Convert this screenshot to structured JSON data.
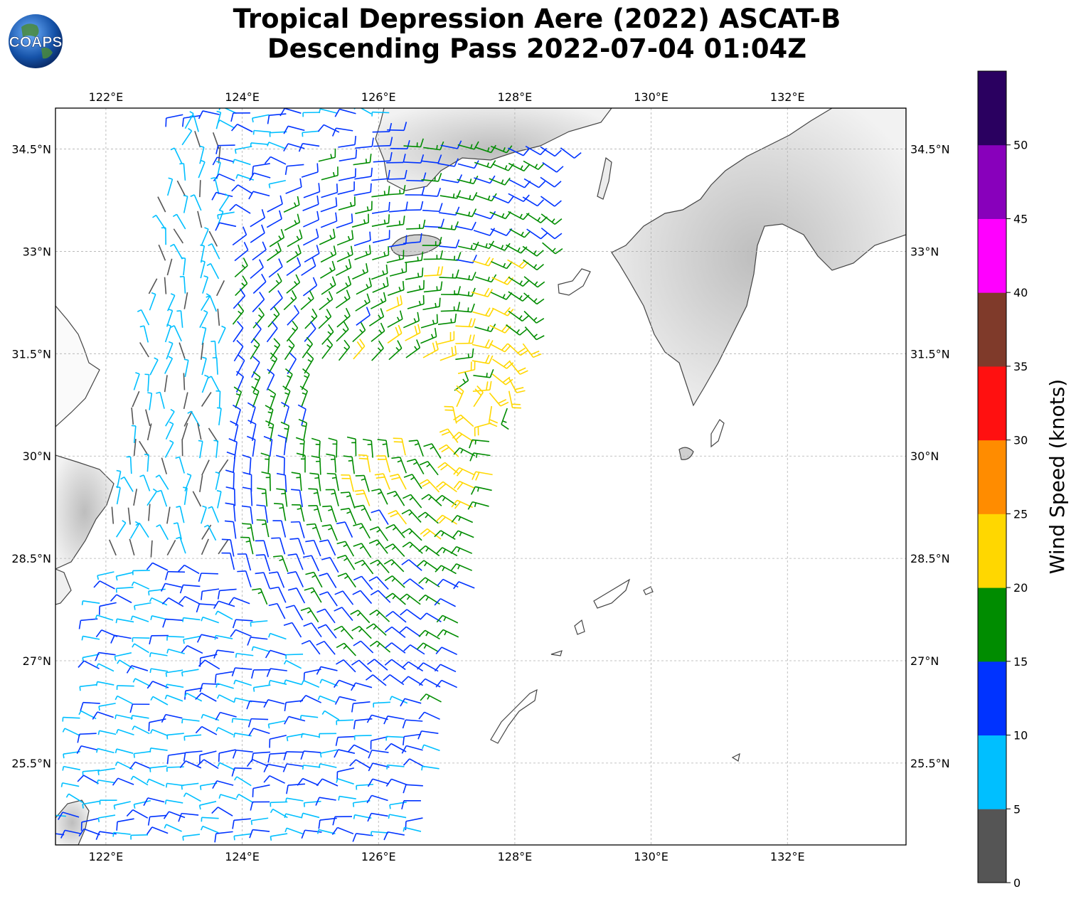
{
  "title": {
    "line1": "Tropical Depression Aere (2022) ASCAT-B",
    "line2": "Descending Pass 2022-07-04 01:04Z"
  },
  "logo": {
    "text": "COAPS",
    "icon": "globe-logo-icon"
  },
  "map": {
    "lon_range": [
      121.26,
      133.74
    ],
    "lat_range": [
      24.3,
      35.1
    ],
    "lon_ticks": [
      "122°E",
      "124°E",
      "126°E",
      "128°E",
      "130°E",
      "132°E"
    ],
    "lon_values": [
      122,
      124,
      126,
      128,
      130,
      132
    ],
    "lat_ticks": [
      "25.5°N",
      "27°N",
      "28.5°N",
      "30°N",
      "31.5°N",
      "33°N",
      "34.5°N"
    ],
    "lat_values": [
      25.5,
      27,
      28.5,
      30,
      31.5,
      33,
      34.5
    ],
    "gridlines": true,
    "storm_center_approx": {
      "lon": 127.5,
      "lat": 30.7
    }
  },
  "colorbar": {
    "label": "Wind Speed (knots)",
    "ticks": [
      "0",
      "5",
      "10",
      "15",
      "20",
      "25",
      "30",
      "35",
      "40",
      "45",
      "50"
    ],
    "bins": [
      {
        "min": 0,
        "max": 5,
        "color": "#555555"
      },
      {
        "min": 5,
        "max": 10,
        "color": "#00bfff"
      },
      {
        "min": 10,
        "max": 15,
        "color": "#0033ff"
      },
      {
        "min": 15,
        "max": 20,
        "color": "#008c00"
      },
      {
        "min": 20,
        "max": 25,
        "color": "#ffd700"
      },
      {
        "min": 25,
        "max": 30,
        "color": "#ff8c00"
      },
      {
        "min": 30,
        "max": 35,
        "color": "#ff1010"
      },
      {
        "min": 35,
        "max": 40,
        "color": "#7f3a2a"
      },
      {
        "min": 40,
        "max": 45,
        "color": "#ff00ff"
      },
      {
        "min": 45,
        "max": 50,
        "color": "#8800bb"
      },
      {
        "min": 50,
        "max": 55,
        "color": "#2a0060"
      }
    ]
  },
  "colors": {
    "land_edge": "#444444",
    "grid": "#b0b0b0",
    "land_fill": "#f4f4f4"
  }
}
